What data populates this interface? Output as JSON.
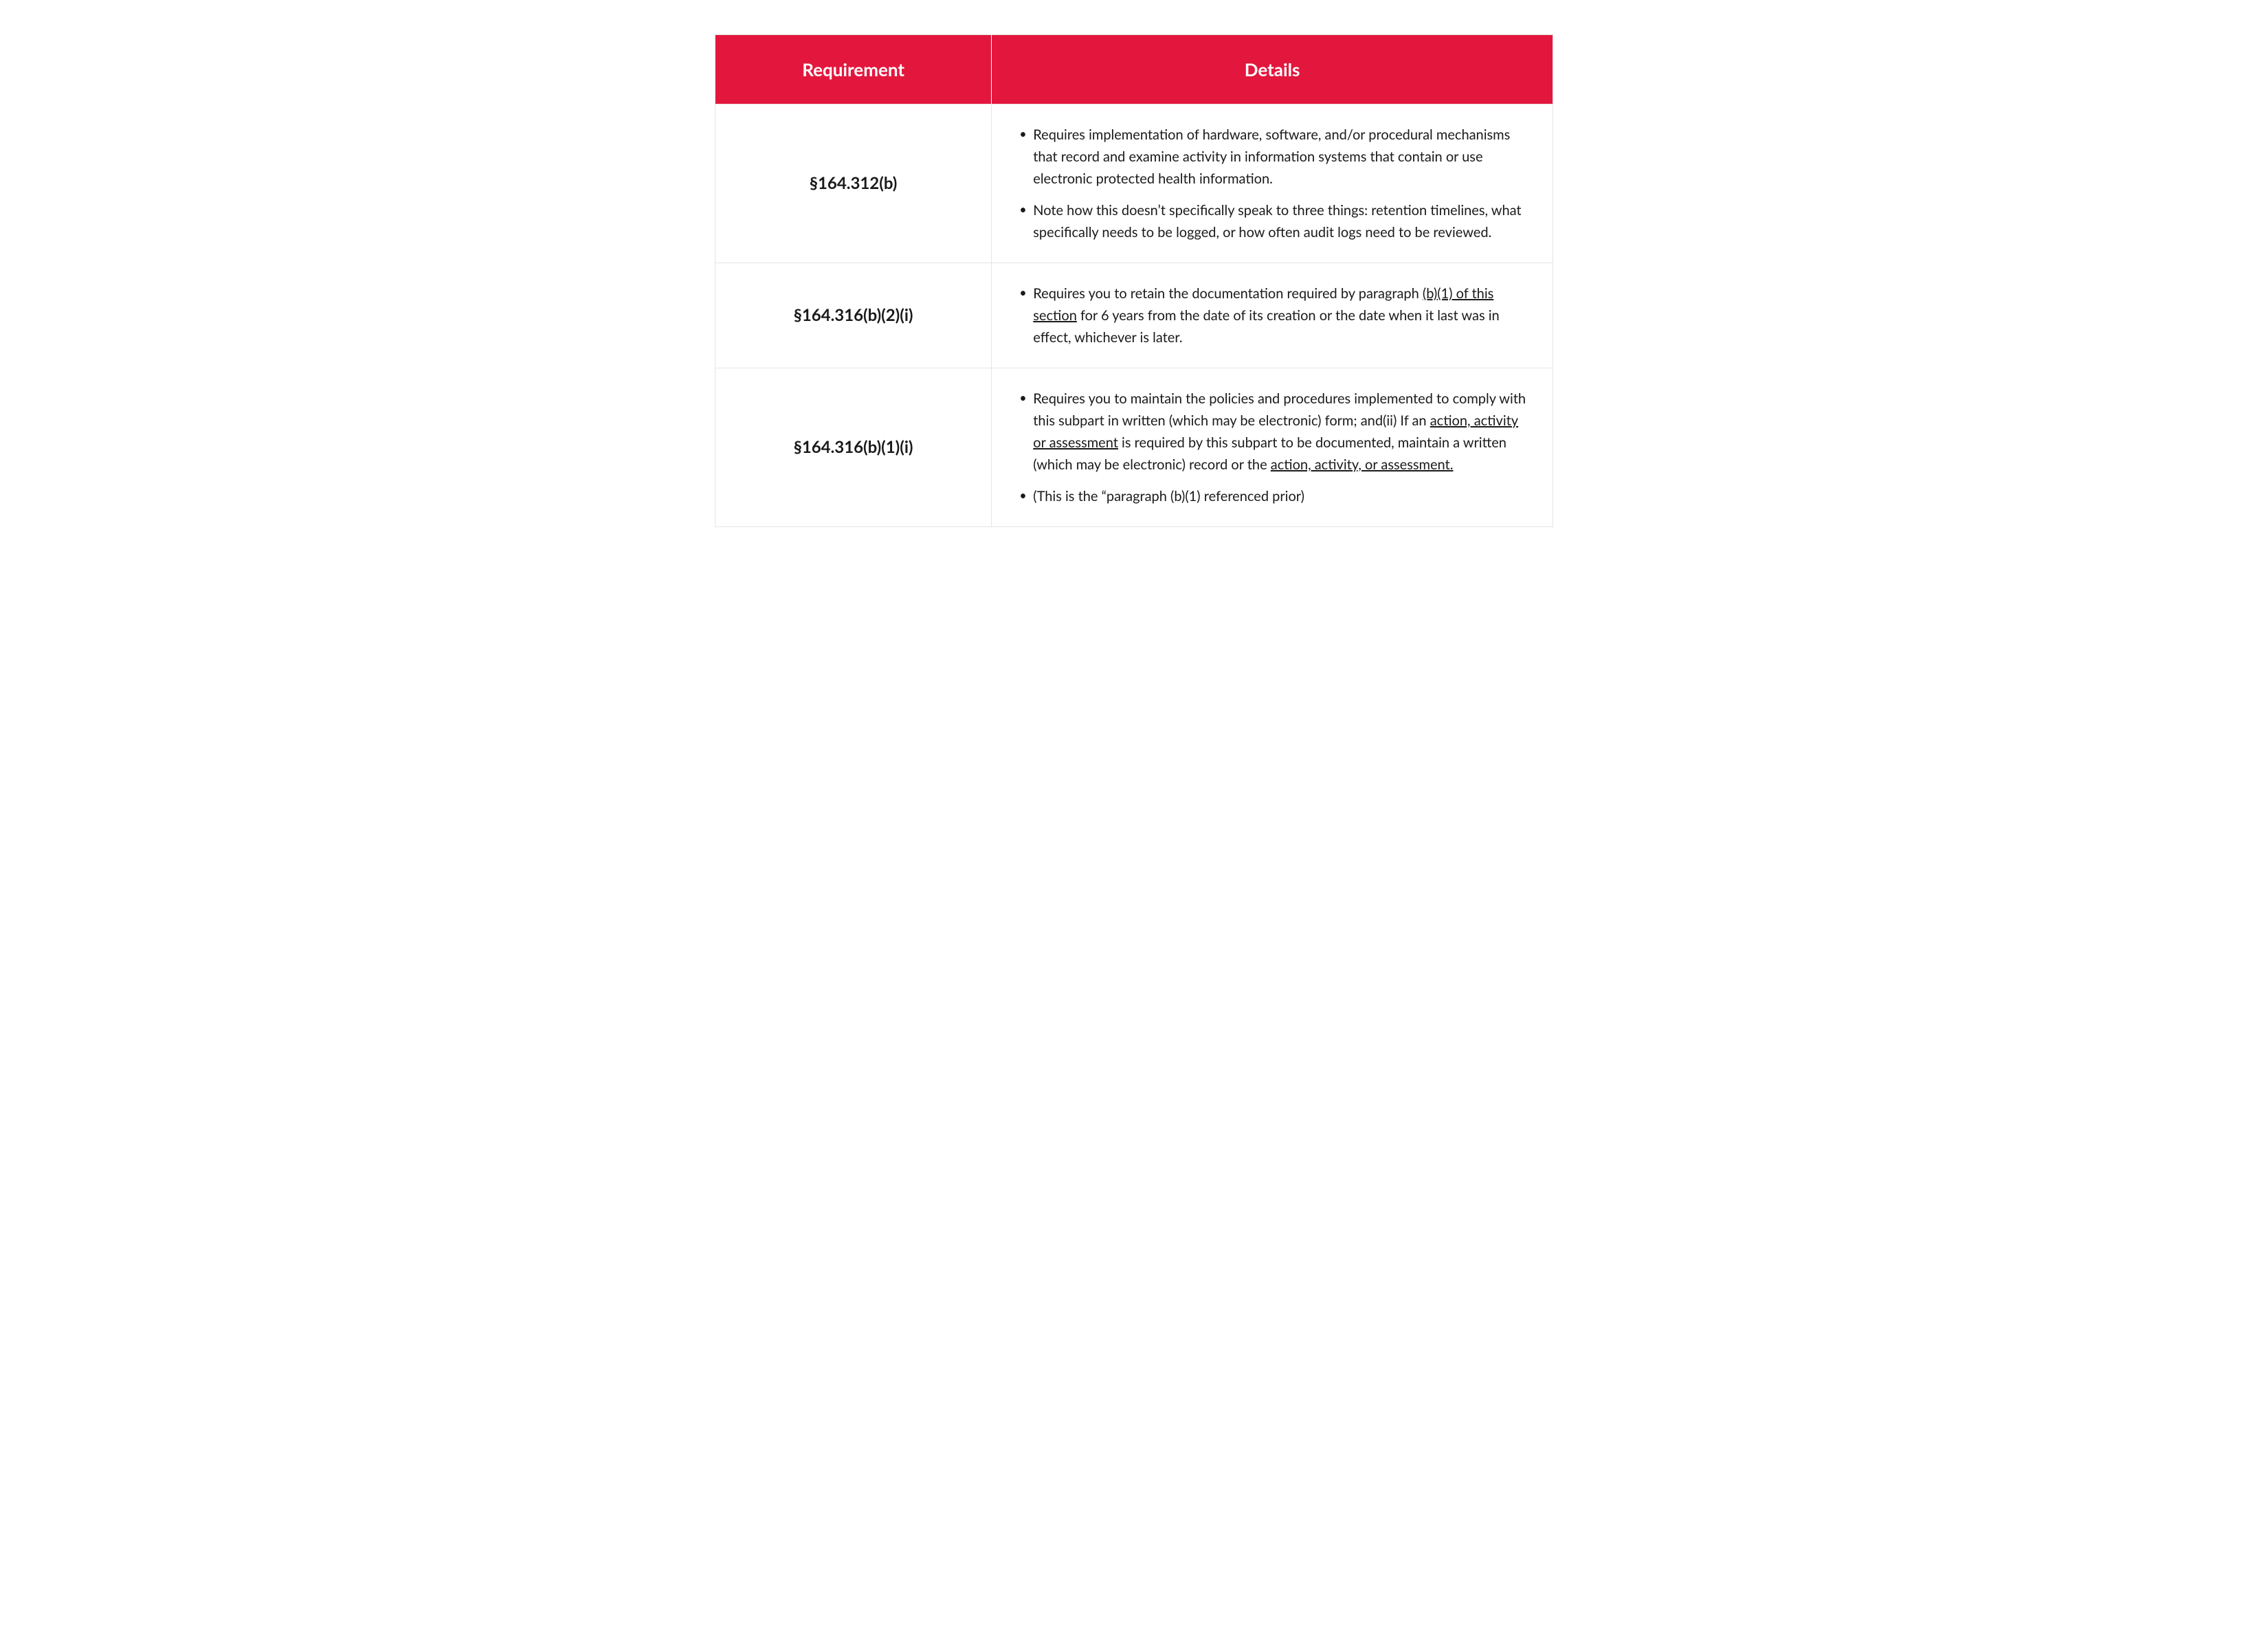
{
  "table": {
    "columns": [
      "Requirement",
      "Details"
    ],
    "header_bg": "#e3173e",
    "header_fg": "#ffffff",
    "border_color": "#e5e5e5",
    "font_size_header": 26,
    "font_size_req": 24,
    "font_size_body": 20,
    "col_widths_pct": [
      33,
      67
    ],
    "rows": [
      {
        "requirement": "§164.312(b)",
        "details": [
          {
            "segments": [
              {
                "text": "Requires implementation of hardware, software, and/or procedural mechanisms that record and examine activity in information systems that contain or use electronic protected health information."
              }
            ]
          },
          {
            "segments": [
              {
                "text": "Note how this doesn’t specifically speak to three things: retention timelines, what specifically needs to be logged, or how often audit logs need to be reviewed."
              }
            ]
          }
        ]
      },
      {
        "requirement": "§164.316(b)(2)(i)",
        "details": [
          {
            "segments": [
              {
                "text": "Requires you to retain the documentation required by paragraph "
              },
              {
                "text": "(b)(1) of this section",
                "underline": true
              },
              {
                "text": " for 6 years from the date of its creation or the date when it last was in effect, whichever is later."
              }
            ]
          }
        ]
      },
      {
        "requirement": "§164.316(b)(1)(i)",
        "details": [
          {
            "segments": [
              {
                "text": "Requires you to maintain the policies and procedures implemented to comply with this subpart in written (which may be electronic) form; and(ii) If an "
              },
              {
                "text": "action, activity or assessment",
                "underline": true
              },
              {
                "text": " is required by this subpart to be documented, maintain a written (which may be electronic) record or the "
              },
              {
                "text": "action, activity, or assessment.",
                "underline": true
              }
            ]
          },
          {
            "segments": [
              {
                "text": "(This is the “paragraph (b)(1) referenced prior)"
              }
            ]
          }
        ]
      }
    ]
  }
}
